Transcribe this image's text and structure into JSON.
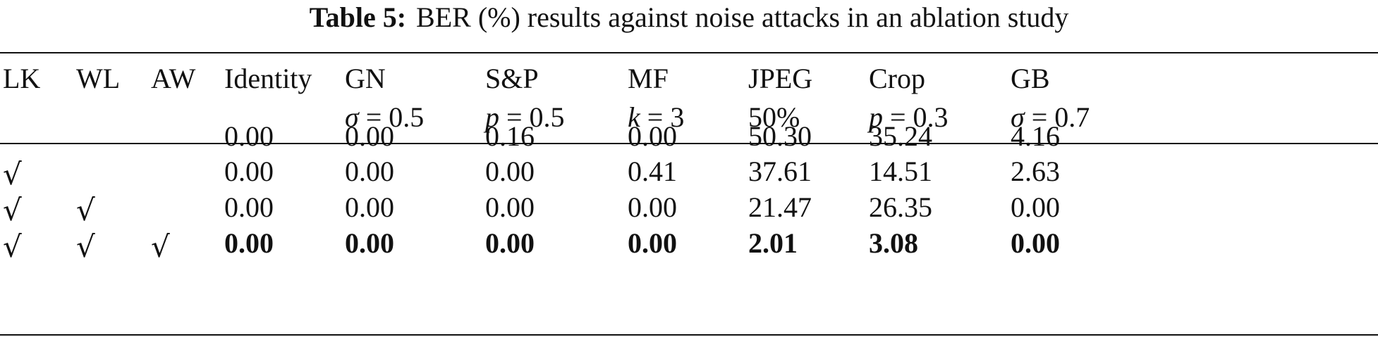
{
  "caption": {
    "label": "Table 5:",
    "text": "BER (%) results against noise attacks in an ablation study"
  },
  "columns": [
    {
      "name": "LK",
      "param": ""
    },
    {
      "name": "WL",
      "param": ""
    },
    {
      "name": "AW",
      "param": ""
    },
    {
      "name": "Identity",
      "param": ""
    },
    {
      "name": "GN",
      "param": "σ = 0.5"
    },
    {
      "name": "S&P",
      "param": "p = 0.5"
    },
    {
      "name": "MF",
      "param": "k = 3"
    },
    {
      "name": "JPEG",
      "param": "50%"
    },
    {
      "name": "Crop",
      "param": "p = 0.3"
    },
    {
      "name": "GB",
      "param": "σ = 0.7"
    }
  ],
  "check_symbol": "√",
  "rows": [
    {
      "lk": false,
      "wl": false,
      "aw": false,
      "bold": false,
      "values": [
        "0.00",
        "0.00",
        "0.16",
        "0.00",
        "50.30",
        "35.24",
        "4.16"
      ]
    },
    {
      "lk": true,
      "wl": false,
      "aw": false,
      "bold": false,
      "values": [
        "0.00",
        "0.00",
        "0.00",
        "0.41",
        "37.61",
        "14.51",
        "2.63"
      ]
    },
    {
      "lk": true,
      "wl": true,
      "aw": false,
      "bold": false,
      "values": [
        "0.00",
        "0.00",
        "0.00",
        "0.00",
        "21.47",
        "26.35",
        "0.00"
      ]
    },
    {
      "lk": true,
      "wl": true,
      "aw": true,
      "bold": true,
      "values": [
        "0.00",
        "0.00",
        "0.00",
        "0.00",
        "2.01",
        "3.08",
        "0.00"
      ]
    }
  ]
}
